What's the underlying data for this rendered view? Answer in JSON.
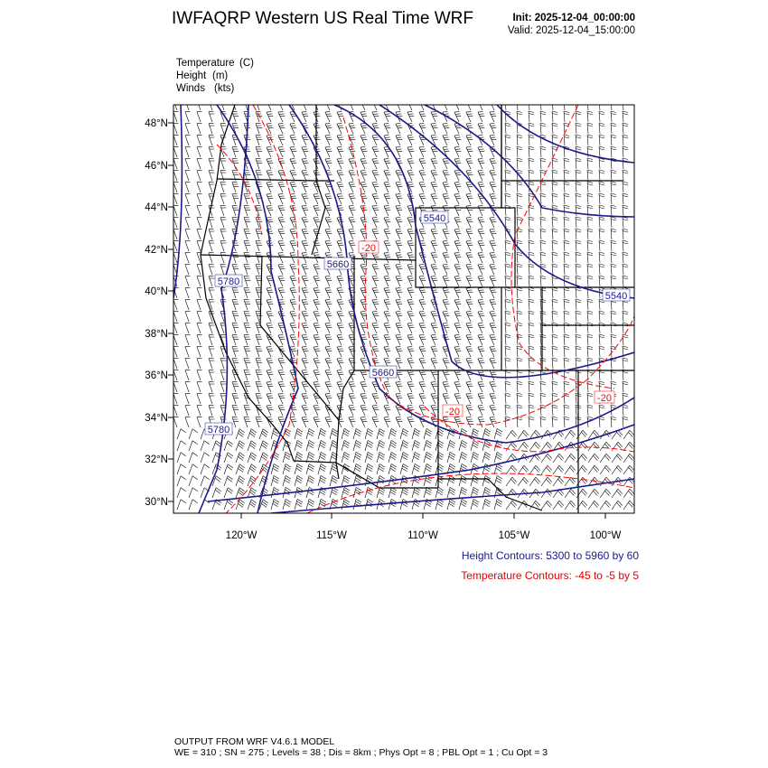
{
  "header": {
    "title": "IWFAQRP Western US Real Time WRF",
    "init": "Init: 2025-12-04_00:00:00",
    "valid": "Valid: 2025-12-04_15:00:00"
  },
  "fields": [
    {
      "name": "Temperature",
      "unit": "(C)"
    },
    {
      "name": "Height",
      "unit": "(m)"
    },
    {
      "name": "Winds",
      "unit": "(kts)"
    }
  ],
  "map": {
    "lat_ticks": [
      "48°N",
      "46°N",
      "44°N",
      "42°N",
      "40°N",
      "38°N",
      "36°N",
      "34°N",
      "32°N",
      "30°N"
    ],
    "lon_ticks": [
      "120°W",
      "115°W",
      "110°W",
      "105°W",
      "100°W"
    ],
    "height_labels": [
      "5780",
      "5780",
      "5660",
      "5660",
      "5540",
      "5540"
    ],
    "temp_labels": [
      "-20",
      "-20",
      "-20"
    ],
    "colors": {
      "height": "#1a1a8c",
      "temperature": "#ff0000",
      "borders": "#000000",
      "barbs": "#000000"
    }
  },
  "legend": {
    "height": "Height Contours: 5300 to 5960 by 60",
    "temperature": "Temperature Contours: -45 to -5 by 5"
  },
  "footer": {
    "line1": "OUTPUT FROM WRF V4.6.1 MODEL",
    "line2": "WE = 310 ; SN = 275 ; Levels = 38 ; Dis = 8km ; Phys Opt = 8 ; PBL Opt = 1 ; Cu Opt = 3"
  }
}
